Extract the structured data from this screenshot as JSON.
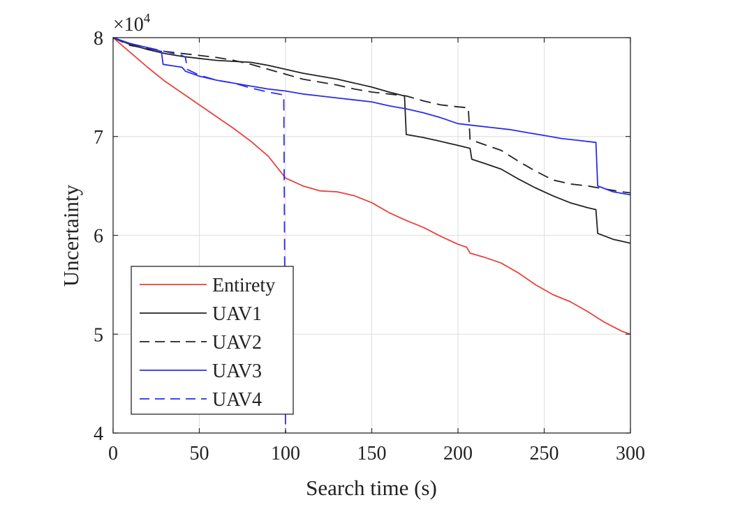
{
  "chart_data": {
    "type": "line",
    "xlabel": "Search time (s)",
    "ylabel": "Uncertainty",
    "exponent_base": "×10",
    "exponent_power": "4",
    "xlim": [
      0,
      300
    ],
    "ylim": [
      4,
      8
    ],
    "xticks": [
      0,
      50,
      100,
      150,
      200,
      250,
      300
    ],
    "yticks": [
      4,
      5,
      6,
      7,
      8
    ],
    "grid": true,
    "legend_position": "bottom-left",
    "series": [
      {
        "name": "Entirety",
        "color": "#e8413c",
        "dash": "solid",
        "points": [
          [
            0,
            8.0
          ],
          [
            10,
            7.85
          ],
          [
            20,
            7.7
          ],
          [
            30,
            7.56
          ],
          [
            40,
            7.44
          ],
          [
            50,
            7.32
          ],
          [
            60,
            7.2
          ],
          [
            70,
            7.08
          ],
          [
            80,
            6.95
          ],
          [
            90,
            6.8
          ],
          [
            100,
            6.58
          ],
          [
            110,
            6.5
          ],
          [
            120,
            6.45
          ],
          [
            130,
            6.44
          ],
          [
            140,
            6.4
          ],
          [
            150,
            6.33
          ],
          [
            160,
            6.23
          ],
          [
            170,
            6.15
          ],
          [
            180,
            6.08
          ],
          [
            190,
            5.99
          ],
          [
            200,
            5.91
          ],
          [
            205,
            5.88
          ],
          [
            207,
            5.82
          ],
          [
            215,
            5.78
          ],
          [
            225,
            5.72
          ],
          [
            235,
            5.62
          ],
          [
            245,
            5.5
          ],
          [
            255,
            5.4
          ],
          [
            265,
            5.33
          ],
          [
            275,
            5.23
          ],
          [
            285,
            5.12
          ],
          [
            295,
            5.03
          ],
          [
            300,
            5.0
          ]
        ]
      },
      {
        "name": "UAV1",
        "color": "#222222",
        "dash": "solid",
        "points": [
          [
            0,
            8.0
          ],
          [
            10,
            7.93
          ],
          [
            20,
            7.88
          ],
          [
            30,
            7.84
          ],
          [
            40,
            7.81
          ],
          [
            50,
            7.79
          ],
          [
            60,
            7.77
          ],
          [
            70,
            7.76
          ],
          [
            80,
            7.75
          ],
          [
            90,
            7.72
          ],
          [
            100,
            7.68
          ],
          [
            110,
            7.64
          ],
          [
            120,
            7.61
          ],
          [
            130,
            7.58
          ],
          [
            140,
            7.54
          ],
          [
            150,
            7.5
          ],
          [
            160,
            7.45
          ],
          [
            169,
            7.41
          ],
          [
            170,
            7.02
          ],
          [
            180,
            6.99
          ],
          [
            190,
            6.95
          ],
          [
            200,
            6.91
          ],
          [
            207,
            6.88
          ],
          [
            208,
            6.77
          ],
          [
            215,
            6.73
          ],
          [
            225,
            6.67
          ],
          [
            235,
            6.57
          ],
          [
            245,
            6.48
          ],
          [
            255,
            6.4
          ],
          [
            265,
            6.33
          ],
          [
            275,
            6.28
          ],
          [
            280,
            6.26
          ],
          [
            281,
            6.02
          ],
          [
            290,
            5.96
          ],
          [
            300,
            5.92
          ]
        ]
      },
      {
        "name": "UAV2",
        "color": "#222222",
        "dash": "dashed",
        "points": [
          [
            0,
            8.0
          ],
          [
            10,
            7.92
          ],
          [
            20,
            7.89
          ],
          [
            30,
            7.86
          ],
          [
            40,
            7.84
          ],
          [
            50,
            7.82
          ],
          [
            60,
            7.8
          ],
          [
            70,
            7.77
          ],
          [
            80,
            7.73
          ],
          [
            90,
            7.68
          ],
          [
            100,
            7.63
          ],
          [
            110,
            7.58
          ],
          [
            120,
            7.55
          ],
          [
            130,
            7.52
          ],
          [
            140,
            7.48
          ],
          [
            150,
            7.45
          ],
          [
            160,
            7.43
          ],
          [
            170,
            7.41
          ],
          [
            180,
            7.36
          ],
          [
            190,
            7.32
          ],
          [
            200,
            7.3
          ],
          [
            206,
            7.29
          ],
          [
            207,
            6.97
          ],
          [
            215,
            6.92
          ],
          [
            225,
            6.86
          ],
          [
            235,
            6.75
          ],
          [
            245,
            6.65
          ],
          [
            255,
            6.56
          ],
          [
            265,
            6.52
          ],
          [
            275,
            6.5
          ],
          [
            285,
            6.47
          ],
          [
            295,
            6.44
          ],
          [
            300,
            6.43
          ]
        ]
      },
      {
        "name": "UAV3",
        "color": "#2b2bf0",
        "dash": "solid",
        "points": [
          [
            0,
            8.0
          ],
          [
            10,
            7.94
          ],
          [
            20,
            7.9
          ],
          [
            28,
            7.86
          ],
          [
            29,
            7.73
          ],
          [
            40,
            7.7
          ],
          [
            42,
            7.66
          ],
          [
            50,
            7.61
          ],
          [
            60,
            7.57
          ],
          [
            70,
            7.54
          ],
          [
            80,
            7.51
          ],
          [
            90,
            7.48
          ],
          [
            100,
            7.46
          ],
          [
            110,
            7.43
          ],
          [
            120,
            7.41
          ],
          [
            130,
            7.39
          ],
          [
            140,
            7.37
          ],
          [
            150,
            7.35
          ],
          [
            160,
            7.31
          ],
          [
            170,
            7.28
          ],
          [
            180,
            7.24
          ],
          [
            190,
            7.19
          ],
          [
            200,
            7.13
          ],
          [
            210,
            7.11
          ],
          [
            220,
            7.09
          ],
          [
            230,
            7.07
          ],
          [
            240,
            7.04
          ],
          [
            250,
            7.01
          ],
          [
            260,
            6.98
          ],
          [
            270,
            6.96
          ],
          [
            280,
            6.94
          ],
          [
            281,
            6.5
          ],
          [
            290,
            6.44
          ],
          [
            300,
            6.41
          ]
        ]
      },
      {
        "name": "UAV4",
        "color": "#2b2bf0",
        "dash": "dashed",
        "points": [
          [
            0,
            8.0
          ],
          [
            10,
            7.94
          ],
          [
            20,
            7.9
          ],
          [
            30,
            7.86
          ],
          [
            40,
            7.82
          ],
          [
            42,
            7.8
          ],
          [
            43,
            7.68
          ],
          [
            50,
            7.62
          ],
          [
            60,
            7.57
          ],
          [
            70,
            7.54
          ],
          [
            80,
            7.49
          ],
          [
            90,
            7.45
          ],
          [
            99,
            7.42
          ],
          [
            100,
            4.0
          ]
        ]
      }
    ]
  }
}
